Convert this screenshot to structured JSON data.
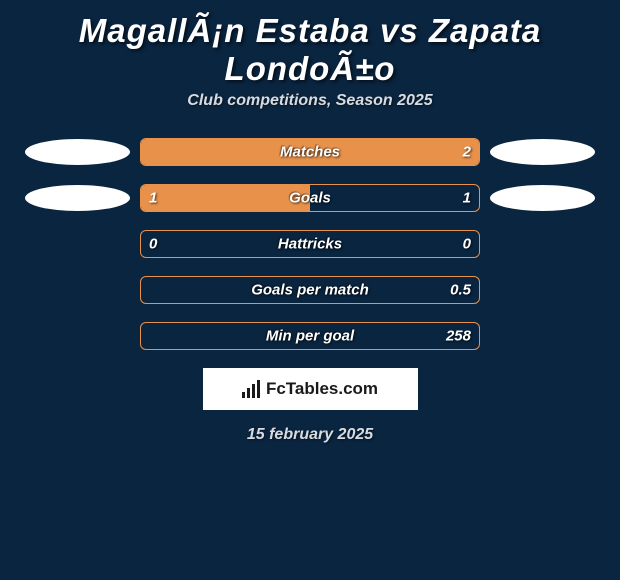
{
  "header": {
    "title": "MagallÃ¡n Estaba vs Zapata LondoÃ±o",
    "subtitle": "Club competitions, Season 2025"
  },
  "stats": [
    {
      "label": "Matches",
      "left_value": "",
      "right_value": "2",
      "fill_percent": 100,
      "show_left_oval": true,
      "show_right_oval": true,
      "bar_color": "#e8914a",
      "border_color": "#e8914a"
    },
    {
      "label": "Goals",
      "left_value": "1",
      "right_value": "1",
      "fill_percent": 50,
      "show_left_oval": true,
      "show_right_oval": true,
      "bar_color": "#e8914a",
      "border_color": "#e8914a"
    },
    {
      "label": "Hattricks",
      "left_value": "0",
      "right_value": "0",
      "fill_percent": 0,
      "show_left_oval": false,
      "show_right_oval": false,
      "bar_color": "#e8914a",
      "border_color": "#e8914a"
    },
    {
      "label": "Goals per match",
      "left_value": "",
      "right_value": "0.5",
      "fill_percent": 0,
      "show_left_oval": false,
      "show_right_oval": false,
      "bar_color": "#e8914a",
      "border_color": "#e8914a"
    },
    {
      "label": "Min per goal",
      "left_value": "",
      "right_value": "258",
      "fill_percent": 0,
      "show_left_oval": false,
      "show_right_oval": false,
      "bar_color": "#e8914a",
      "border_color": "#e8914a"
    }
  ],
  "footer": {
    "brand_text": "FcTables.com",
    "date": "15 february 2025"
  },
  "style": {
    "background_color": "#0a2540",
    "text_color": "#ffffff",
    "subtitle_color": "#d8dce0",
    "oval_color": "#ffffff"
  }
}
